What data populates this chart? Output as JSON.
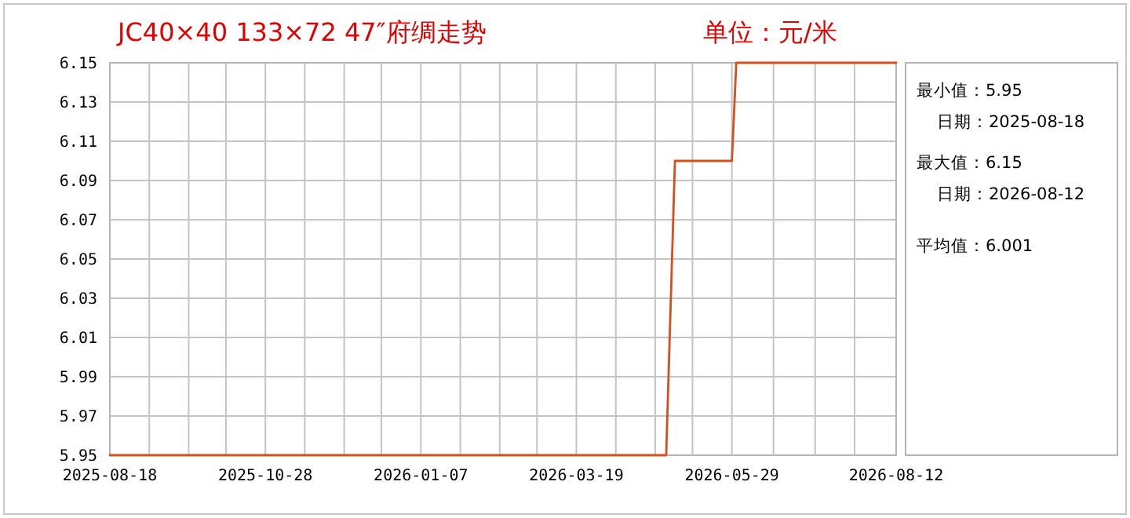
{
  "chart_data": {
    "type": "line",
    "title": "JC40×40 133×72 47″府绸走势",
    "subtitle": "单位：元/米",
    "x": [
      "2025-08-18",
      "2026-04-29",
      "2026-05-03",
      "2026-05-29",
      "2026-05-31",
      "2026-08-12"
    ],
    "series": [
      {
        "color": "#d2501e",
        "values": [
          5.95,
          5.95,
          6.1,
          6.1,
          6.15,
          6.15
        ]
      }
    ],
    "xlim": [
      "2025-08-18",
      "2026-08-12"
    ],
    "xticks": [
      {
        "value": "2025-08-18",
        "label": "2025-08-18"
      },
      {
        "value": "2025-09-05",
        "label": null
      },
      {
        "value": "2025-09-23",
        "label": null
      },
      {
        "value": "2025-10-10",
        "label": null
      },
      {
        "value": "2025-10-28",
        "label": "2025-10-28"
      },
      {
        "value": "2025-11-15",
        "label": null
      },
      {
        "value": "2025-12-03",
        "label": null
      },
      {
        "value": "2025-12-20",
        "label": null
      },
      {
        "value": "2026-01-07",
        "label": "2026-01-07"
      },
      {
        "value": "2026-01-25",
        "label": null
      },
      {
        "value": "2026-02-12",
        "label": null
      },
      {
        "value": "2026-03-01",
        "label": null
      },
      {
        "value": "2026-03-19",
        "label": "2026-03-19"
      },
      {
        "value": "2026-04-06",
        "label": null
      },
      {
        "value": "2026-04-24",
        "label": null
      },
      {
        "value": "2026-05-11",
        "label": null
      },
      {
        "value": "2026-05-29",
        "label": "2026-05-29"
      },
      {
        "value": "2026-06-17",
        "label": null
      },
      {
        "value": "2026-07-06",
        "label": null
      },
      {
        "value": "2026-07-24",
        "label": null
      },
      {
        "value": "2026-08-12",
        "label": "2026-08-12"
      }
    ],
    "ylim": [
      5.95,
      6.15
    ],
    "yticks": [
      5.95,
      5.97,
      5.99,
      6.01,
      6.03,
      6.05,
      6.07,
      6.09,
      6.11,
      6.13,
      6.15
    ],
    "grid": true,
    "annotations": [
      "最小值：5.95",
      "日期：2025-08-18",
      "最大值：6.15",
      "日期：2026-08-12",
      "平均值：6.001"
    ]
  }
}
